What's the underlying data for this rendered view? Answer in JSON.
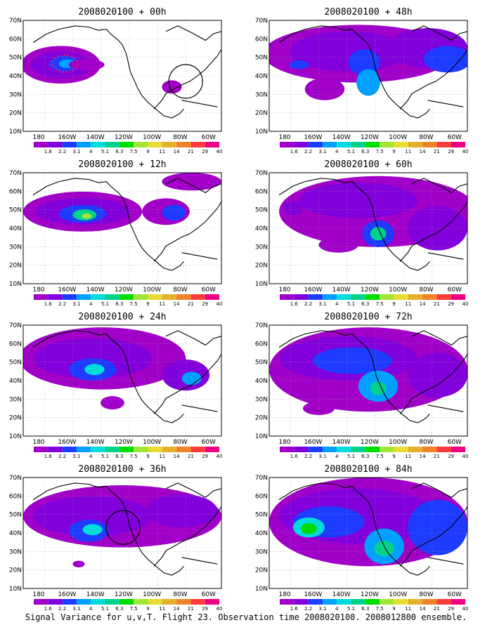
{
  "figure": {
    "caption": "Signal Variance for u,v,T. Flight 23. Observation time 2008020100. 2008012800 ensemble."
  },
  "axes": {
    "lon_ticks": [
      "180",
      "160W",
      "140W",
      "120W",
      "100W",
      "80W",
      "60W"
    ],
    "lat_ticks": [
      "10N",
      "20N",
      "30N",
      "40N",
      "50N",
      "60N",
      "70N"
    ]
  },
  "colorbar": {
    "labels": [
      "1.6",
      "2.2",
      "3.1",
      "4",
      "5.1",
      "6.3",
      "7.5",
      "9",
      "11",
      "14",
      "21",
      "29",
      "40"
    ],
    "colors": [
      "#a000c8",
      "#8200dc",
      "#1e3cff",
      "#00a0ff",
      "#00dcdc",
      "#00d28c",
      "#00dc00",
      "#a0e632",
      "#e6dc32",
      "#e6af2d",
      "#f08228",
      "#fa3c3c",
      "#f00082"
    ]
  },
  "panels": [
    {
      "title": "2008020100 + 00h",
      "circle": true,
      "dots": true
    },
    {
      "title": "2008020100 + 48h",
      "circle": false,
      "dots": false
    },
    {
      "title": "2008020100 + 12h",
      "circle": false,
      "dots": false
    },
    {
      "title": "2008020100 + 60h",
      "circle": false,
      "dots": false
    },
    {
      "title": "2008020100 + 24h",
      "circle": false,
      "dots": false
    },
    {
      "title": "2008020100 + 72h",
      "circle": false,
      "dots": false
    },
    {
      "title": "2008020100 + 36h",
      "circle": true,
      "dots": false
    },
    {
      "title": "2008020100 + 84h",
      "circle": false,
      "dots": false
    }
  ]
}
